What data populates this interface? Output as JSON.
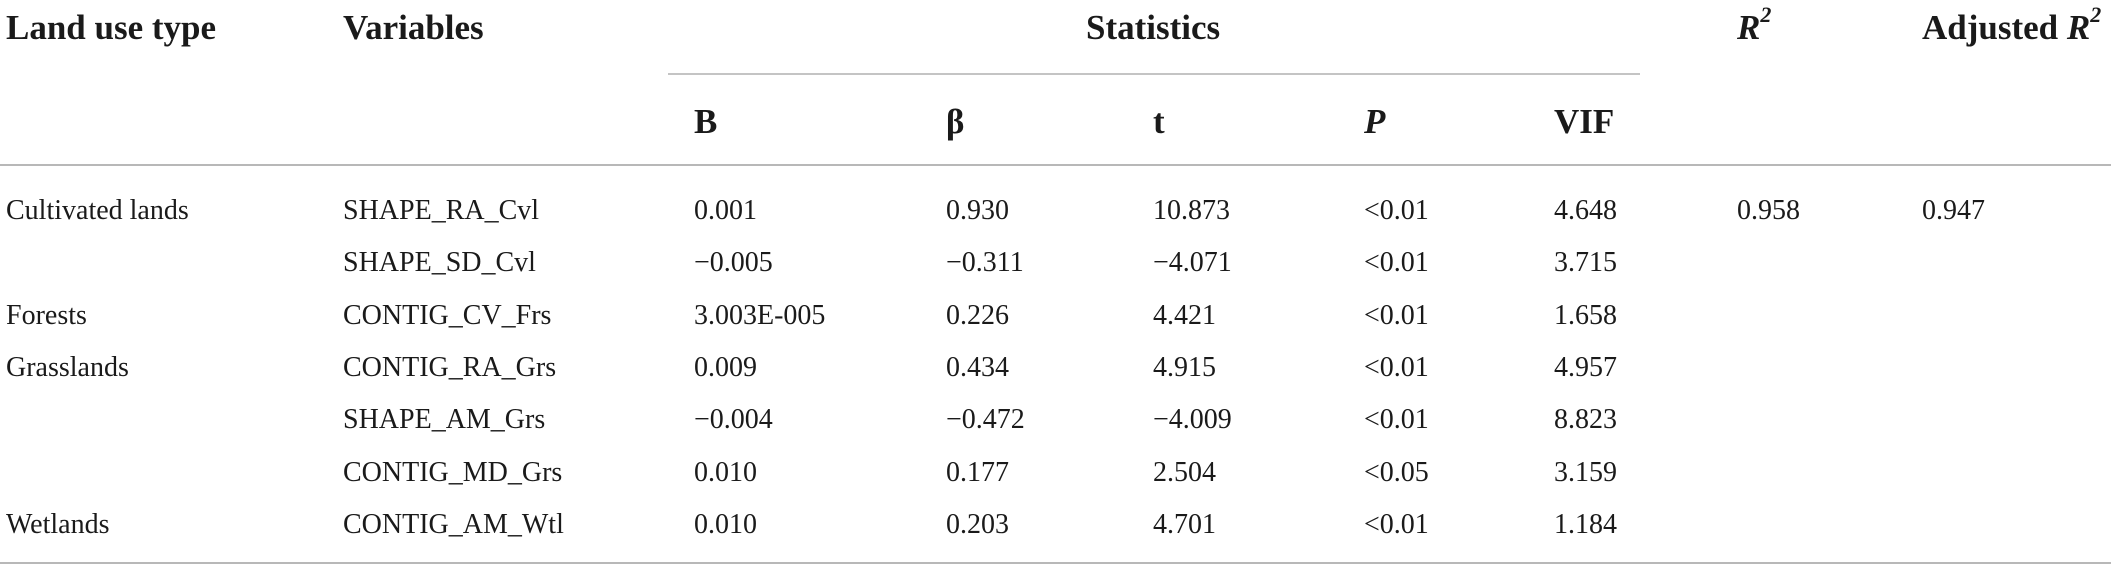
{
  "table": {
    "headers": {
      "land_use_type": "Land use type",
      "variables": "Variables",
      "statistics": "Statistics",
      "r2_base": "R",
      "r2_sup": "2",
      "adj_prefix": "Adjusted ",
      "adj_r": "R",
      "adj_sup": "2"
    },
    "subheaders": [
      "B",
      "β",
      "t",
      "P",
      "VIF"
    ],
    "rows": [
      {
        "land_use": "Cultivated lands",
        "variable": "SHAPE_RA_Cvl",
        "B": "0.001",
        "beta": "0.930",
        "t": "10.873",
        "P": "<0.01",
        "VIF": "4.648",
        "R2": "0.958",
        "adj_R2": "0.947"
      },
      {
        "land_use": "",
        "variable": "SHAPE_SD_Cvl",
        "B": "−0.005",
        "beta": "−0.311",
        "t": "−4.071",
        "P": "<0.01",
        "VIF": "3.715",
        "R2": "",
        "adj_R2": ""
      },
      {
        "land_use": "Forests",
        "variable": "CONTIG_CV_Frs",
        "B": "3.003E-005",
        "beta": "0.226",
        "t": "4.421",
        "P": "<0.01",
        "VIF": "1.658",
        "R2": "",
        "adj_R2": ""
      },
      {
        "land_use": "Grasslands",
        "variable": "CONTIG_RA_Grs",
        "B": "0.009",
        "beta": "0.434",
        "t": "4.915",
        "P": "<0.01",
        "VIF": "4.957",
        "R2": "",
        "adj_R2": ""
      },
      {
        "land_use": "",
        "variable": "SHAPE_AM_Grs",
        "B": "−0.004",
        "beta": "−0.472",
        "t": "−4.009",
        "P": "<0.01",
        "VIF": "8.823",
        "R2": "",
        "adj_R2": ""
      },
      {
        "land_use": "",
        "variable": "CONTIG_MD_Grs",
        "B": "0.010",
        "beta": "0.177",
        "t": "2.504",
        "P": "<0.05",
        "VIF": "3.159",
        "R2": "",
        "adj_R2": ""
      },
      {
        "land_use": "Wetlands",
        "variable": "CONTIG_AM_Wtl",
        "B": "0.010",
        "beta": "0.203",
        "t": "4.701",
        "P": "<0.01",
        "VIF": "1.184",
        "R2": "",
        "adj_R2": ""
      }
    ]
  }
}
